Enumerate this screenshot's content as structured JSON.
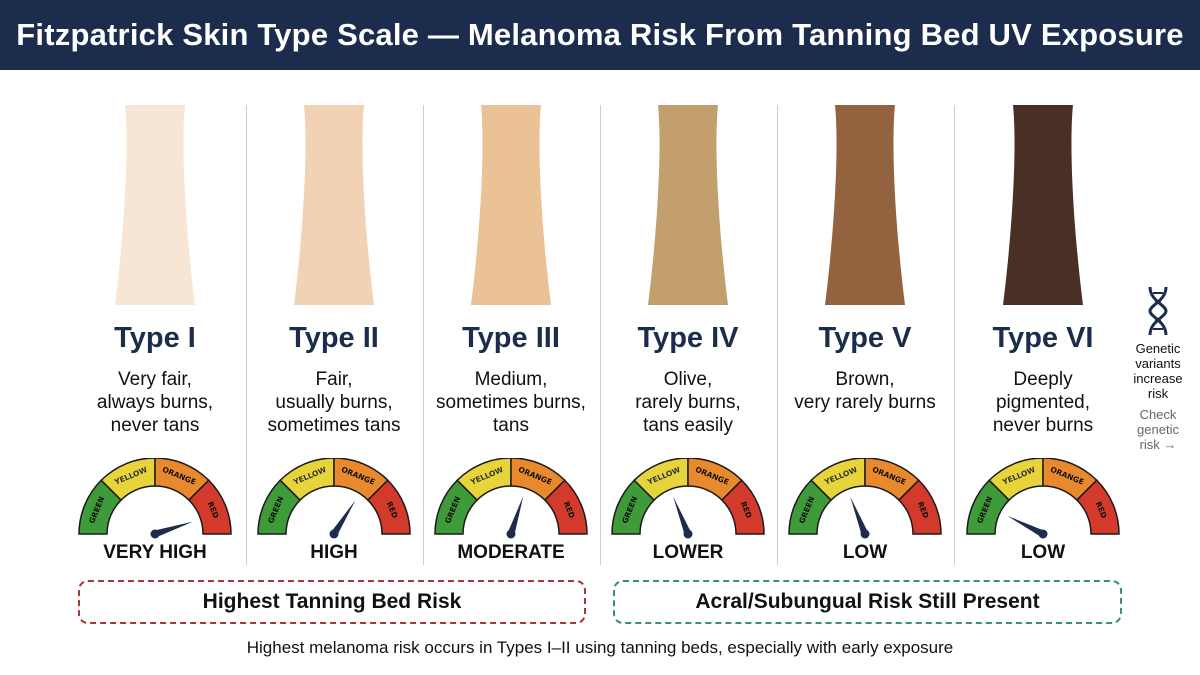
{
  "title": "Fitzpatrick Skin Type Scale — Melanoma Risk From Tanning Bed UV Exposure",
  "gauge_labels": [
    "GREEN",
    "YELLOW",
    "ORANGE",
    "RED"
  ],
  "colors": {
    "title_bg": "#1c2c4c",
    "gauge_green": "#3f9a3a",
    "gauge_yellow": "#e6d43a",
    "gauge_orange": "#e8892e",
    "gauge_red": "#d33a2c",
    "needle": "#1c2c4c",
    "highest_risk_border": "#a8353a",
    "acral_risk_border": "#3a8f78"
  },
  "types": [
    {
      "name": "Type I",
      "desc": [
        "Very fair,",
        "always burns,",
        "never tans"
      ],
      "skin_color": "#f7e6d4",
      "risk_label": "VERY HIGH",
      "risk_level": 0.9
    },
    {
      "name": "Type II",
      "desc": [
        "Fair,",
        "usually burns,",
        "sometimes tans"
      ],
      "skin_color": "#f2d2b4",
      "risk_label": "HIGH",
      "risk_level": 0.68
    },
    {
      "name": "Type III",
      "desc": [
        "Medium,",
        "sometimes burns,",
        "tans"
      ],
      "skin_color": "#ebc196",
      "risk_label": "MODERATE",
      "risk_level": 0.6
    },
    {
      "name": "Type IV",
      "desc": [
        "Olive,",
        "rarely burns,",
        "tans easily"
      ],
      "skin_color": "#c29f6c",
      "risk_label": "LOWER",
      "risk_level": 0.38
    },
    {
      "name": "Type V",
      "desc": [
        "Brown,",
        "very rarely burns"
      ],
      "skin_color": "#93623f",
      "risk_label": "LOW",
      "risk_level": 0.38
    },
    {
      "name": "Type VI",
      "desc": [
        "Deeply",
        "pigmented,",
        "never burns"
      ],
      "skin_color": "#4a3024",
      "risk_label": "LOW",
      "risk_level": 0.15
    }
  ],
  "side_note": {
    "icon": "dna-icon",
    "text": [
      "Genetic",
      "variants",
      "increase",
      "risk"
    ],
    "link": [
      "Check",
      "genetic",
      "risk →"
    ]
  },
  "risk_boxes": {
    "highest": "Highest Tanning Bed Risk",
    "acral": "Acral/Subungual Risk Still Present"
  },
  "footnote": "Highest melanoma risk occurs in Types I–II using tanning beds, especially with early exposure"
}
